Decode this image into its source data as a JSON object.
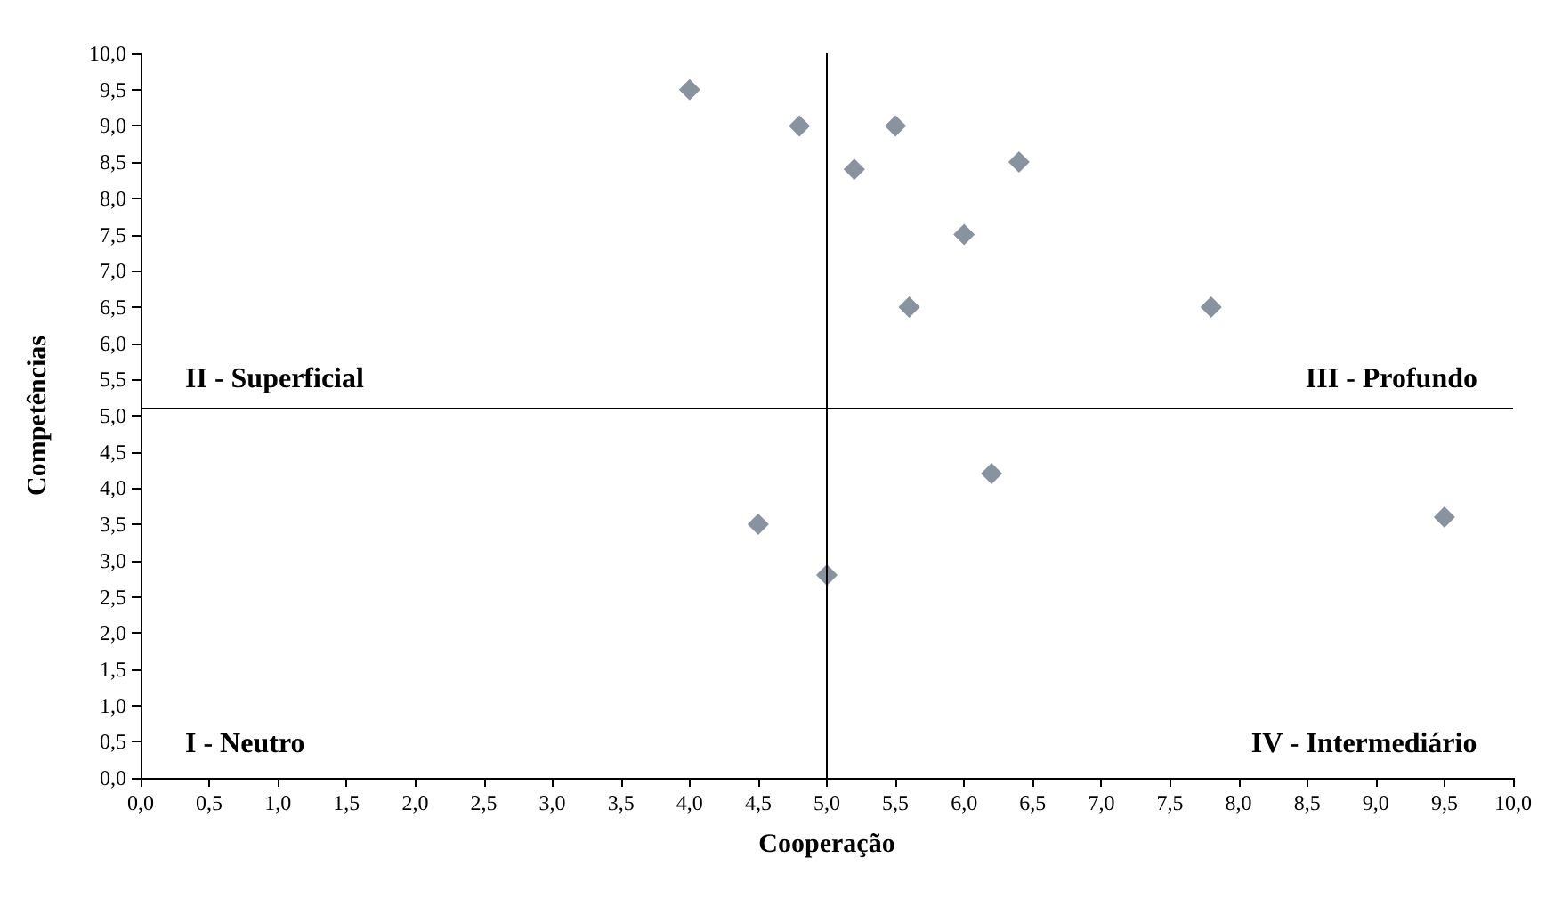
{
  "chart_data": {
    "type": "scatter",
    "xlabel": "Cooperação",
    "ylabel": "Competências",
    "x": [
      4.0,
      4.8,
      5.5,
      5.2,
      6.4,
      6.0,
      5.6,
      7.8,
      6.2,
      4.5,
      5.0,
      9.5
    ],
    "series": [
      {
        "color": "#6b7888",
        "values": [
          9.5,
          9.0,
          9.0,
          8.4,
          8.5,
          7.5,
          6.5,
          6.5,
          4.2,
          3.5,
          2.8,
          3.6
        ]
      }
    ],
    "marker": "diamond",
    "xlim": [
      0,
      10
    ],
    "ylim": [
      0,
      10
    ],
    "xticks": [
      {
        "value": 0,
        "label": "0,0"
      },
      {
        "value": 0.5,
        "label": "0,5"
      },
      {
        "value": 1,
        "label": "1,0"
      },
      {
        "value": 1.5,
        "label": "1,5"
      },
      {
        "value": 2,
        "label": "2,0"
      },
      {
        "value": 2.5,
        "label": "2,5"
      },
      {
        "value": 3,
        "label": "3,0"
      },
      {
        "value": 3.5,
        "label": "3,5"
      },
      {
        "value": 4,
        "label": "4,0"
      },
      {
        "value": 4.5,
        "label": "4,5"
      },
      {
        "value": 5,
        "label": "5,0"
      },
      {
        "value": 5.5,
        "label": "5,5"
      },
      {
        "value": 6,
        "label": "6,0"
      },
      {
        "value": 6.5,
        "label": "6,5"
      },
      {
        "value": 7,
        "label": "7,0"
      },
      {
        "value": 7.5,
        "label": "7,5"
      },
      {
        "value": 8,
        "label": "8,0"
      },
      {
        "value": 8.5,
        "label": "8,5"
      },
      {
        "value": 9,
        "label": "9,0"
      },
      {
        "value": 9.5,
        "label": "9,5"
      },
      {
        "value": 10,
        "label": "10,0"
      }
    ],
    "yticks": [
      {
        "value": 0,
        "label": "0,0"
      },
      {
        "value": 0.5,
        "label": "0,5"
      },
      {
        "value": 1,
        "label": "1,0"
      },
      {
        "value": 1.5,
        "label": "1,5"
      },
      {
        "value": 2,
        "label": "2,0"
      },
      {
        "value": 2.5,
        "label": "2,5"
      },
      {
        "value": 3,
        "label": "3,0"
      },
      {
        "value": 3.5,
        "label": "3,5"
      },
      {
        "value": 4,
        "label": "4,0"
      },
      {
        "value": 4.5,
        "label": "4,5"
      },
      {
        "value": 5,
        "label": "5,0"
      },
      {
        "value": 5.5,
        "label": "5,5"
      },
      {
        "value": 6,
        "label": "6,0"
      },
      {
        "value": 6.5,
        "label": "6,5"
      },
      {
        "value": 7,
        "label": "7,0"
      },
      {
        "value": 7.5,
        "label": "7,5"
      },
      {
        "value": 8,
        "label": "8,0"
      },
      {
        "value": 8.5,
        "label": "8,5"
      },
      {
        "value": 9,
        "label": "9,0"
      },
      {
        "value": 9.5,
        "label": "9,5"
      },
      {
        "value": 10,
        "label": "10,0"
      }
    ],
    "ref_lines": [
      {
        "axis": "x",
        "value": 5.0,
        "color": "#000000"
      },
      {
        "axis": "y",
        "value": 5.1,
        "color": "#000000"
      }
    ],
    "annotations": [
      "II - Superficial",
      "III - Profundo",
      "I - Neutro",
      "IV - Intermediário"
    ],
    "grid": false
  }
}
